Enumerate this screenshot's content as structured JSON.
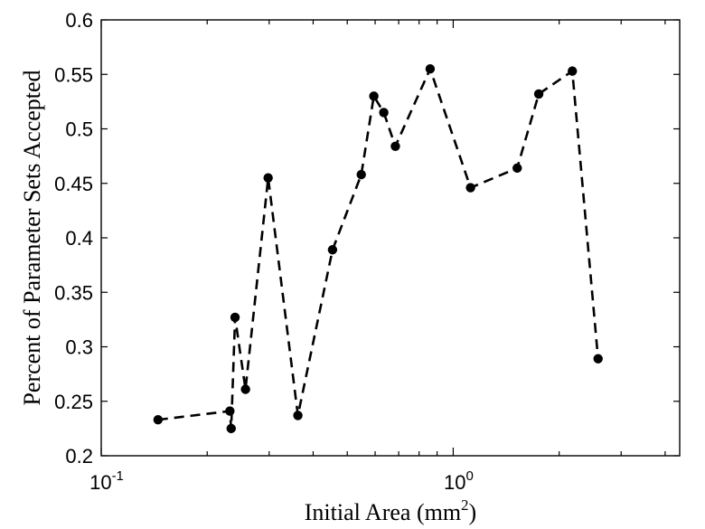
{
  "chart_data": {
    "type": "scatter",
    "line_style": "dashed",
    "marker": "filled-circle",
    "colors": {
      "series": "#000000",
      "axes": "#000000",
      "background": "#ffffff"
    },
    "x": [
      0.145,
      0.232,
      0.234,
      0.24,
      0.257,
      0.298,
      0.362,
      0.454,
      0.548,
      0.595,
      0.635,
      0.685,
      0.86,
      1.12,
      1.52,
      1.75,
      2.18,
      2.58
    ],
    "y": [
      0.233,
      0.241,
      0.225,
      0.327,
      0.261,
      0.455,
      0.237,
      0.389,
      0.458,
      0.53,
      0.515,
      0.484,
      0.555,
      0.446,
      0.464,
      0.532,
      0.553,
      0.289
    ],
    "xlabel": "Initial Area (mm",
    "xlabel_sup": "2",
    "xlabel_end": ")",
    "ylabel": "Percent of Parameter Sets Accepted",
    "xscale": "log",
    "xlim": [
      0.1,
      4.4
    ],
    "ylim": [
      0.2,
      0.6
    ],
    "xticks": [
      {
        "base": "10",
        "exp": "-1",
        "value": 0.1
      },
      {
        "base": "10",
        "exp": "0",
        "value": 1
      }
    ],
    "yticks": [
      {
        "label": "0.2",
        "value": 0.2
      },
      {
        "label": "0.25",
        "value": 0.25
      },
      {
        "label": "0.3",
        "value": 0.3
      },
      {
        "label": "0.35",
        "value": 0.35
      },
      {
        "label": "0.4",
        "value": 0.4
      },
      {
        "label": "0.45",
        "value": 0.45
      },
      {
        "label": "0.5",
        "value": 0.5
      },
      {
        "label": "0.55",
        "value": 0.55
      },
      {
        "label": "0.6",
        "value": 0.6
      }
    ],
    "grid": false,
    "legend": "none"
  }
}
